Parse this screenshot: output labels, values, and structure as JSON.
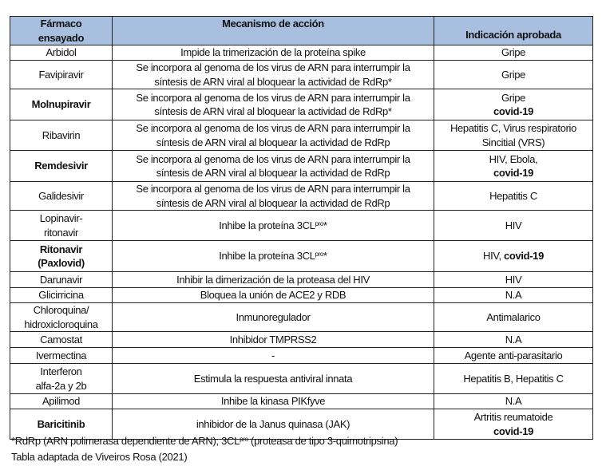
{
  "header": {
    "drug": [
      [
        "Fármaco"
      ],
      [
        "ensayado"
      ]
    ],
    "mechanism": [
      [
        "Mecanismo de acción"
      ]
    ],
    "indication": [
      [
        "Indicación  aprobada"
      ]
    ]
  },
  "header_color": "#a8bfdf",
  "rows": [
    {
      "drug": [
        [
          "Arbidol"
        ]
      ],
      "mechanism": [
        [
          "Impide la trimerización  de  la   proteína spike"
        ]
      ],
      "indication": [
        [
          "Gripe"
        ]
      ]
    },
    {
      "drug": [
        [
          "Favipiravir"
        ]
      ],
      "mechanism": [
        [
          "Se incorpora al genoma de los virus de ARN para interrumpir la"
        ],
        [
          "síntesis de ARN viral al bloquear la actividad de RdRp*"
        ]
      ],
      "indication": [
        [
          "Gripe"
        ]
      ]
    },
    {
      "drug": [
        [
          {
            "t": "Molnupiravir",
            "b": true
          }
        ]
      ],
      "mechanism": [
        [
          "Se incorpora al genoma de los virus de ARN para interrumpir la"
        ],
        [
          "síntesis de ARN viral al bloquear la actividad de RdRp*"
        ]
      ],
      "indication": [
        [
          "Gripe"
        ],
        [
          {
            "t": "covid-19",
            "b": true
          }
        ]
      ]
    },
    {
      "drug": [
        [
          "Ribavirin"
        ]
      ],
      "mechanism": [
        [
          "Se incorpora al genoma de los virus de ARN para interrumpir la"
        ],
        [
          "síntesis de ARN viral al bloquear la actividad de RdRp"
        ]
      ],
      "indication": [
        [
          "Hepatitis C, Virus respiratorio"
        ],
        [
          "Sincitial (VRS)"
        ]
      ]
    },
    {
      "drug": [
        [
          {
            "t": "Remdesivir",
            "b": true
          }
        ]
      ],
      "mechanism": [
        [
          "Se incorpora al genoma de los virus de ARN para interrumpir la"
        ],
        [
          "síntesis de ARN viral al bloquear la actividad de RdRp"
        ]
      ],
      "indication": [
        [
          "HIV, Ebola,"
        ],
        [
          {
            "t": "covid-19",
            "b": true
          }
        ]
      ]
    },
    {
      "drug": [
        [
          "Galidesivir"
        ]
      ],
      "mechanism": [
        [
          "Se incorpora al genoma de los virus de ARN para interrumpir la"
        ],
        [
          "síntesis de ARN viral al bloquear la actividad de RdRp"
        ]
      ],
      "indication": [
        [
          "Hepatitis C"
        ]
      ]
    },
    {
      "drug": [
        [
          "Lopinavir-"
        ],
        [
          "ritonavir"
        ]
      ],
      "mechanism": [
        [
          "Inhibe la proteína 3CL",
          {
            "t": "pro",
            "sup": true
          },
          "*"
        ]
      ],
      "indication": [
        [
          "HIV"
        ]
      ]
    },
    {
      "drug": [
        [
          {
            "t": "Ritonavir",
            "b": true
          }
        ],
        [
          {
            "t": "(Paxlovid)",
            "b": true
          }
        ]
      ],
      "mechanism": [
        [
          "Inhibe la proteína 3CL",
          {
            "t": "pro",
            "sup": true
          },
          "*"
        ]
      ],
      "indication": [
        [
          "HIV, ",
          {
            "t": "covid-19",
            "b": true
          }
        ]
      ]
    },
    {
      "drug": [
        [
          "Darunavir"
        ]
      ],
      "mechanism": [
        [
          "Inhibir la dimerización  de la proteasa  del HIV"
        ]
      ],
      "indication": [
        [
          "HIV"
        ]
      ]
    },
    {
      "drug": [
        [
          "Glicirricina"
        ]
      ],
      "mechanism": [
        [
          "Bloquea la unión de ACE2 y RDB"
        ]
      ],
      "indication": [
        [
          "N.A"
        ]
      ]
    },
    {
      "drug": [
        [
          "Chloroquina/"
        ],
        [
          "hidroxicloroquina"
        ]
      ],
      "mechanism": [
        [
          "Inmunoregulador"
        ]
      ],
      "indication": [
        [
          "Antimalarico"
        ]
      ]
    },
    {
      "drug": [
        [
          "Camostat"
        ]
      ],
      "mechanism": [
        [
          "Inhibidor  TMPRSS2"
        ]
      ],
      "indication": [
        [
          "N.A"
        ]
      ]
    },
    {
      "drug": [
        [
          "Ivermectina"
        ]
      ],
      "mechanism": [
        [
          "-"
        ]
      ],
      "indication": [
        [
          "Agente anti-parasitario"
        ]
      ]
    },
    {
      "drug": [
        [
          "Interferon"
        ],
        [
          "alfa-2a y 2b"
        ]
      ],
      "mechanism": [
        [
          "Estimula la respuesta antiviral innata"
        ]
      ],
      "indication": [
        [
          "Hepatitis B, Hepatitis C"
        ]
      ]
    },
    {
      "drug": [
        [
          "Apilimod"
        ]
      ],
      "mechanism": [
        [
          "Inhibe la  kinasa PIKfyve"
        ]
      ],
      "indication": [
        [
          "N.A"
        ]
      ]
    },
    {
      "drug": [
        [
          {
            "t": "Baricitinib",
            "b": true
          }
        ]
      ],
      "mechanism": [
        [
          "inhibidor de la Janus quinasa (JAK)"
        ]
      ],
      "indication": [
        [
          "Artritis reumatoide"
        ],
        [
          {
            "t": "covid-19",
            "b": true
          }
        ]
      ]
    }
  ],
  "notes": [
    [
      "*RdRp (ARN polimerasa dependiente de ARN); 3CL",
      {
        "t": "pro",
        "sup": true
      },
      " (proteasa de tipo 3-quimotripsina)"
    ],
    [
      "Tabla adaptada de Viveiros Rosa (2021)"
    ]
  ]
}
